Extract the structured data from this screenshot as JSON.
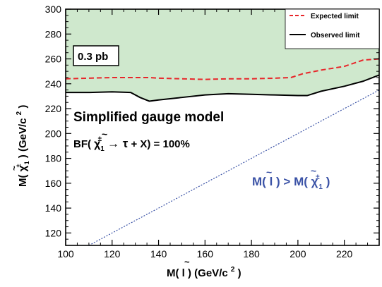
{
  "chart_data": {
    "type": "line",
    "xlabel": "M(̃l) (GeV/c²)",
    "xlabel_parts": {
      "pre": "M(",
      "l": "l",
      "post": ") (GeV/c",
      "sup": "2",
      "end": ")"
    },
    "ylabel_parts": {
      "pre": "M(",
      "chi": "χ",
      "sup": "±",
      "sub": "1",
      "post": ") (GeV/c",
      "sup2": "2",
      "end": ")"
    },
    "xlim": [
      100,
      235
    ],
    "ylim": [
      110,
      300
    ],
    "xticks": [
      100,
      120,
      140,
      160,
      180,
      200,
      220
    ],
    "yticks": [
      120,
      140,
      160,
      180,
      200,
      220,
      240,
      260,
      280,
      300
    ],
    "legend_position": "top-right",
    "series": [
      {
        "name": "Expected limit",
        "style": "dashed",
        "color": "#e8262a",
        "x": [
          100,
          110,
          120,
          130,
          136,
          140,
          150,
          160,
          170,
          180,
          190,
          197,
          202,
          210,
          220,
          228,
          235
        ],
        "y": [
          244,
          244.5,
          245,
          245,
          245,
          244.5,
          244,
          243.5,
          244,
          244,
          244.5,
          245,
          248,
          251,
          254,
          259,
          260
        ]
      },
      {
        "name": "Observed limit",
        "style": "solid",
        "color": "#000000",
        "x": [
          100,
          110,
          120,
          128,
          132,
          136,
          140,
          150,
          160,
          170,
          180,
          190,
          200,
          204,
          210,
          220,
          228,
          235
        ],
        "y": [
          233,
          233,
          233.5,
          233,
          229,
          226,
          227,
          229,
          231,
          232,
          231.5,
          231,
          230.5,
          230.5,
          234,
          238,
          242,
          247
        ]
      }
    ],
    "diagonal_line": {
      "style": "dotted",
      "color": "#3a52a6",
      "x": [
        110,
        235
      ],
      "y": [
        110,
        235
      ]
    },
    "excluded_region_color": "#cfe8cd",
    "annotations": {
      "box_label": "0.3 pb",
      "model": "Simplified gauge model",
      "bf_prefix": "BF(",
      "bf_chi": "χ",
      "bf_sup": "±",
      "bf_sub": "1",
      "bf_arrow": "→ τ",
      "bf_suffix": " + X) = 100%",
      "region_pre": "M(",
      "region_l": "l",
      "region_mid": ") > M(",
      "region_chi": "χ",
      "region_sup": "±",
      "region_sub": "1",
      "region_end": ")"
    }
  }
}
